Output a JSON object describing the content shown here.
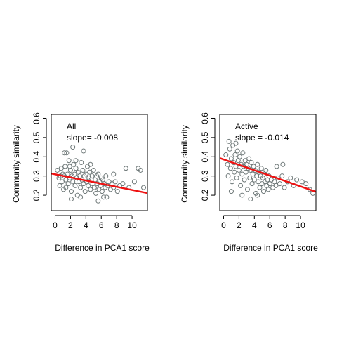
{
  "chart_data": [
    {
      "type": "scatter",
      "xlabel": "Difference in PCA1 score",
      "ylabel": "Community similarity",
      "annotation": {
        "group": "All",
        "slope_text": "slope= -0.008"
      },
      "xlim": [
        -0.5,
        12
      ],
      "ylim": [
        0.12,
        0.62
      ],
      "xticks": [
        0,
        2,
        4,
        6,
        8,
        10
      ],
      "yticks": [
        0.2,
        0.3,
        0.4,
        0.5,
        0.6
      ],
      "point_color": "#6e7878",
      "line_color": "#ee1111",
      "trend_line": {
        "x": [
          -0.5,
          12
        ],
        "y": [
          0.313,
          0.211
        ]
      },
      "points": [
        [
          0.3,
          0.33
        ],
        [
          0.5,
          0.29
        ],
        [
          0.6,
          0.25
        ],
        [
          0.8,
          0.34
        ],
        [
          0.9,
          0.27
        ],
        [
          1.0,
          0.31
        ],
        [
          1.1,
          0.23
        ],
        [
          1.2,
          0.3
        ],
        [
          1.3,
          0.35
        ],
        [
          1.4,
          0.28
        ],
        [
          1.5,
          0.42
        ],
        [
          1.6,
          0.31
        ],
        [
          1.7,
          0.26
        ],
        [
          1.8,
          0.38
        ],
        [
          1.9,
          0.29
        ],
        [
          2.0,
          0.33
        ],
        [
          2.1,
          0.22
        ],
        [
          2.2,
          0.3
        ],
        [
          2.3,
          0.27
        ],
        [
          2.4,
          0.36
        ],
        [
          2.5,
          0.31
        ],
        [
          2.6,
          0.25
        ],
        [
          2.7,
          0.34
        ],
        [
          2.8,
          0.29
        ],
        [
          2.9,
          0.2
        ],
        [
          3.0,
          0.32
        ],
        [
          3.1,
          0.27
        ],
        [
          3.2,
          0.3
        ],
        [
          3.3,
          0.24
        ],
        [
          3.4,
          0.37
        ],
        [
          3.5,
          0.28
        ],
        [
          3.6,
          0.33
        ],
        [
          3.7,
          0.26
        ],
        [
          3.8,
          0.3
        ],
        [
          3.9,
          0.22
        ],
        [
          4.0,
          0.31
        ],
        [
          4.1,
          0.27
        ],
        [
          4.2,
          0.35
        ],
        [
          4.3,
          0.25
        ],
        [
          4.4,
          0.29
        ],
        [
          4.5,
          0.32
        ],
        [
          4.6,
          0.23
        ],
        [
          4.7,
          0.28
        ],
        [
          4.8,
          0.3
        ],
        [
          4.9,
          0.26
        ],
        [
          5.0,
          0.33
        ],
        [
          5.1,
          0.24
        ],
        [
          5.2,
          0.28
        ],
        [
          5.3,
          0.21
        ],
        [
          5.4,
          0.3
        ],
        [
          5.5,
          0.26
        ],
        [
          5.6,
          0.31
        ],
        [
          5.7,
          0.23
        ],
        [
          5.8,
          0.27
        ],
        [
          5.9,
          0.25
        ],
        [
          6.0,
          0.29
        ],
        [
          6.1,
          0.22
        ],
        [
          6.2,
          0.28
        ],
        [
          6.3,
          0.19
        ],
        [
          6.4,
          0.26
        ],
        [
          6.5,
          0.24
        ],
        [
          6.6,
          0.3
        ],
        [
          6.8,
          0.25
        ],
        [
          7.0,
          0.27
        ],
        [
          7.2,
          0.23
        ],
        [
          7.4,
          0.26
        ],
        [
          7.6,
          0.24
        ],
        [
          7.8,
          0.27
        ],
        [
          8.1,
          0.22
        ],
        [
          8.4,
          0.25
        ],
        [
          8.8,
          0.26
        ],
        [
          9.2,
          0.34
        ],
        [
          9.6,
          0.24
        ],
        [
          10.3,
          0.27
        ],
        [
          10.8,
          0.34
        ],
        [
          11.1,
          0.33
        ],
        [
          11.5,
          0.24
        ],
        [
          1.2,
          0.42
        ],
        [
          2.3,
          0.45
        ],
        [
          3.7,
          0.43
        ],
        [
          0.7,
          0.3
        ],
        [
          1.9,
          0.35
        ],
        [
          2.7,
          0.38
        ],
        [
          3.3,
          0.19
        ],
        [
          4.6,
          0.36
        ],
        [
          5.6,
          0.17
        ],
        [
          6.7,
          0.19
        ],
        [
          7.6,
          0.31
        ],
        [
          1.4,
          0.24
        ],
        [
          2.1,
          0.18
        ]
      ]
    },
    {
      "type": "scatter",
      "xlabel": "Difference in PCA1 score",
      "ylabel": "Community similarity",
      "annotation": {
        "group": "Active",
        "slope_text": "slope =  -0.014"
      },
      "xlim": [
        -0.5,
        12
      ],
      "ylim": [
        0.12,
        0.62
      ],
      "xticks": [
        0,
        2,
        4,
        6,
        8,
        10
      ],
      "yticks": [
        0.2,
        0.3,
        0.4,
        0.5,
        0.6
      ],
      "point_color": "#6e7878",
      "line_color": "#ee1111",
      "trend_line": {
        "x": [
          -0.5,
          12
        ],
        "y": [
          0.393,
          0.218
        ]
      },
      "points": [
        [
          0.3,
          0.41
        ],
        [
          0.5,
          0.36
        ],
        [
          0.6,
          0.3
        ],
        [
          0.8,
          0.44
        ],
        [
          0.9,
          0.34
        ],
        [
          1.0,
          0.39
        ],
        [
          1.1,
          0.27
        ],
        [
          1.2,
          0.46
        ],
        [
          1.3,
          0.37
        ],
        [
          1.4,
          0.32
        ],
        [
          1.5,
          0.41
        ],
        [
          1.6,
          0.35
        ],
        [
          1.7,
          0.29
        ],
        [
          1.8,
          0.43
        ],
        [
          1.9,
          0.38
        ],
        [
          2.0,
          0.33
        ],
        [
          2.1,
          0.4
        ],
        [
          2.2,
          0.25
        ],
        [
          2.3,
          0.36
        ],
        [
          2.4,
          0.31
        ],
        [
          2.5,
          0.42
        ],
        [
          2.6,
          0.35
        ],
        [
          2.7,
          0.28
        ],
        [
          2.8,
          0.38
        ],
        [
          2.9,
          0.32
        ],
        [
          3.0,
          0.36
        ],
        [
          3.1,
          0.23
        ],
        [
          3.2,
          0.34
        ],
        [
          3.3,
          0.39
        ],
        [
          3.4,
          0.29
        ],
        [
          3.5,
          0.33
        ],
        [
          3.6,
          0.37
        ],
        [
          3.7,
          0.26
        ],
        [
          3.8,
          0.31
        ],
        [
          3.9,
          0.35
        ],
        [
          4.0,
          0.28
        ],
        [
          4.1,
          0.33
        ],
        [
          4.2,
          0.21
        ],
        [
          4.3,
          0.3
        ],
        [
          4.4,
          0.36
        ],
        [
          4.5,
          0.27
        ],
        [
          4.6,
          0.32
        ],
        [
          4.7,
          0.24
        ],
        [
          4.8,
          0.3
        ],
        [
          4.9,
          0.34
        ],
        [
          5.0,
          0.26
        ],
        [
          5.1,
          0.29
        ],
        [
          5.2,
          0.22
        ],
        [
          5.3,
          0.31
        ],
        [
          5.4,
          0.27
        ],
        [
          5.5,
          0.33
        ],
        [
          5.6,
          0.25
        ],
        [
          5.7,
          0.28
        ],
        [
          5.8,
          0.23
        ],
        [
          5.9,
          0.3
        ],
        [
          6.0,
          0.26
        ],
        [
          6.2,
          0.28
        ],
        [
          6.4,
          0.24
        ],
        [
          6.6,
          0.27
        ],
        [
          6.8,
          0.25
        ],
        [
          7.0,
          0.29
        ],
        [
          7.3,
          0.26
        ],
        [
          7.6,
          0.3
        ],
        [
          7.9,
          0.24
        ],
        [
          8.3,
          0.27
        ],
        [
          8.7,
          0.29
        ],
        [
          9.1,
          0.25
        ],
        [
          9.5,
          0.28
        ],
        [
          10.2,
          0.27
        ],
        [
          10.7,
          0.26
        ],
        [
          11.2,
          0.23
        ],
        [
          11.6,
          0.21
        ],
        [
          0.7,
          0.48
        ],
        [
          1.6,
          0.47
        ],
        [
          2.4,
          0.2
        ],
        [
          3.5,
          0.18
        ],
        [
          1.0,
          0.22
        ],
        [
          4.4,
          0.2
        ],
        [
          6.9,
          0.35
        ],
        [
          7.7,
          0.36
        ]
      ]
    }
  ]
}
